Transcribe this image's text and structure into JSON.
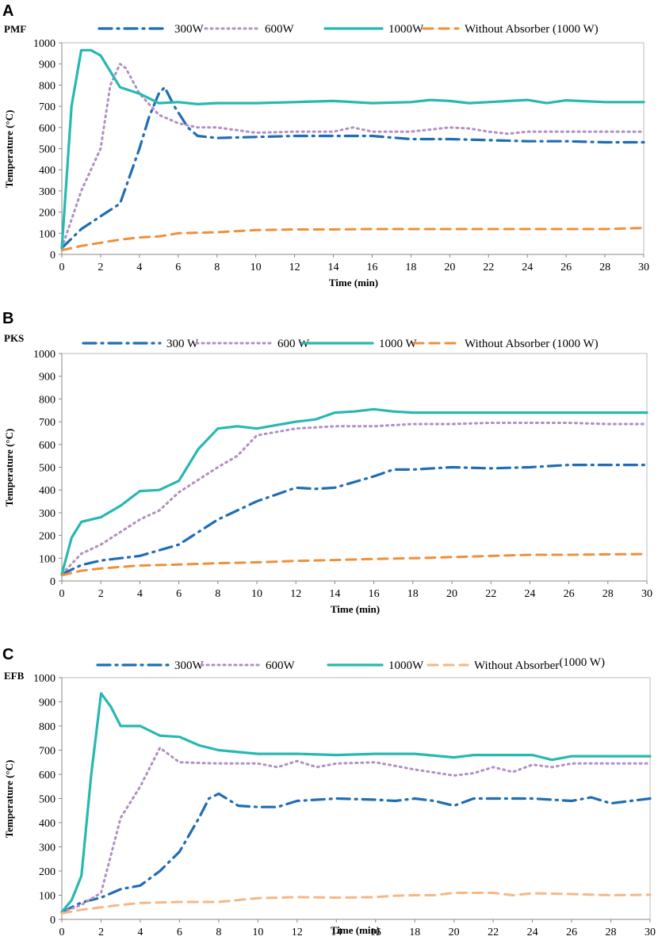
{
  "chart_data": [
    {
      "type": "line",
      "panel_letter": "A",
      "title": "PMF",
      "xlabel": "Time (min)",
      "ylabel": "Temperature (°C)",
      "xlim": [
        0,
        30
      ],
      "ylim": [
        0,
        1000
      ],
      "xticks": [
        "0",
        "2",
        "4",
        "6",
        "8",
        "10",
        "12",
        "14",
        "16",
        "18",
        "20",
        "22",
        "24",
        "26",
        "28",
        "30"
      ],
      "yticks": [
        "0",
        "100",
        "200",
        "300",
        "400",
        "500",
        "600",
        "700",
        "800",
        "900",
        "1000"
      ],
      "series": [
        {
          "name": "300W",
          "legend": [
            "300W"
          ],
          "color": "#1f6db5",
          "dash": "dashdot",
          "x": [
            0,
            1,
            2,
            3,
            4,
            4.5,
            5,
            5.3,
            5.8,
            6.5,
            7,
            8,
            10,
            12,
            14,
            16,
            18,
            20,
            22,
            24,
            26,
            28,
            30
          ],
          "y": [
            30,
            120,
            180,
            240,
            500,
            650,
            760,
            790,
            700,
            600,
            560,
            550,
            555,
            560,
            560,
            560,
            545,
            545,
            540,
            535,
            535,
            530,
            530
          ]
        },
        {
          "name": "600W",
          "legend": [
            "600W"
          ],
          "color": "#b18fc2",
          "dash": "dotted",
          "x": [
            0,
            1,
            2,
            2.5,
            3,
            3.3,
            4,
            5,
            6,
            7,
            8,
            10,
            12,
            14,
            15,
            16,
            18,
            20,
            21,
            22,
            23,
            24,
            26,
            28,
            30
          ],
          "y": [
            30,
            300,
            500,
            800,
            900,
            880,
            760,
            660,
            620,
            600,
            600,
            575,
            580,
            580,
            600,
            580,
            580,
            600,
            595,
            580,
            570,
            580,
            580,
            580,
            580
          ]
        },
        {
          "name": "1000W",
          "legend": [
            "1000W"
          ],
          "color": "#27b8b1",
          "dash": "solid",
          "x": [
            0,
            0.5,
            1,
            1.5,
            2,
            3,
            4,
            5,
            6,
            7,
            8,
            10,
            12,
            14,
            16,
            18,
            19,
            20,
            21,
            22,
            24,
            25,
            26,
            28,
            30
          ],
          "y": [
            30,
            700,
            965,
            965,
            940,
            790,
            760,
            715,
            720,
            710,
            715,
            715,
            720,
            725,
            715,
            720,
            730,
            725,
            715,
            720,
            730,
            715,
            728,
            720,
            720
          ]
        },
        {
          "name": "Without Absorber (1000 W)",
          "legend": [
            "Without Absorber (1000 W)"
          ],
          "color": "#ef8f3a",
          "dash": "dashed",
          "x": [
            0,
            1,
            2,
            3,
            4,
            5,
            6,
            8,
            10,
            12,
            14,
            16,
            18,
            20,
            22,
            24,
            26,
            28,
            30
          ],
          "y": [
            20,
            40,
            55,
            70,
            80,
            85,
            100,
            105,
            115,
            118,
            118,
            120,
            120,
            120,
            120,
            120,
            120,
            120,
            125
          ]
        }
      ]
    },
    {
      "type": "line",
      "panel_letter": "B",
      "title": "PKS",
      "xlabel": "Time (min)",
      "ylabel": "Temperature (°C)",
      "xlim": [
        0,
        30
      ],
      "ylim": [
        0,
        1000
      ],
      "xticks": [
        "0",
        "2",
        "4",
        "6",
        "8",
        "10",
        "12",
        "14",
        "16",
        "18",
        "20",
        "22",
        "24",
        "26",
        "28",
        "30"
      ],
      "yticks": [
        "0",
        "100",
        "200",
        "300",
        "400",
        "500",
        "600",
        "700",
        "800",
        "900",
        "1000"
      ],
      "series": [
        {
          "name": "300 W",
          "legend": [
            "300 W"
          ],
          "color": "#1f6db5",
          "dash": "dashdot",
          "x": [
            0,
            1,
            2,
            4,
            6,
            8,
            10,
            12,
            13,
            14,
            16,
            17,
            18,
            20,
            22,
            24,
            26,
            28,
            30
          ],
          "y": [
            30,
            70,
            90,
            110,
            160,
            270,
            350,
            410,
            405,
            410,
            460,
            490,
            490,
            500,
            495,
            500,
            510,
            510,
            510
          ]
        },
        {
          "name": "600 W",
          "legend": [
            "600 W"
          ],
          "color": "#b18fc2",
          "dash": "dotted",
          "x": [
            0,
            1,
            2,
            4,
            5,
            6,
            8,
            9,
            10,
            12,
            14,
            16,
            18,
            20,
            22,
            24,
            26,
            28,
            30
          ],
          "y": [
            30,
            120,
            160,
            270,
            310,
            390,
            500,
            550,
            640,
            670,
            680,
            680,
            690,
            690,
            695,
            695,
            695,
            690,
            690
          ]
        },
        {
          "name": "1000 W",
          "legend": [
            "1000 W"
          ],
          "color": "#27b8b1",
          "dash": "solid",
          "x": [
            0,
            0.5,
            1,
            2,
            3,
            4,
            5,
            6,
            7,
            8,
            9,
            10,
            12,
            13,
            14,
            15,
            16,
            17,
            18,
            20,
            22,
            24,
            26,
            28,
            30
          ],
          "y": [
            30,
            190,
            260,
            280,
            330,
            395,
            400,
            440,
            580,
            670,
            680,
            670,
            700,
            710,
            740,
            745,
            755,
            745,
            740,
            740,
            740,
            740,
            740,
            740,
            740
          ]
        },
        {
          "name": "Without Absorber (1000 W)",
          "legend": [
            "Without Absorber (1000 W)"
          ],
          "color": "#ef8f3a",
          "dash": "dashed",
          "x": [
            0,
            1,
            2,
            4,
            6,
            8,
            10,
            12,
            14,
            16,
            18,
            20,
            22,
            24,
            26,
            28,
            30
          ],
          "y": [
            25,
            45,
            55,
            68,
            72,
            78,
            82,
            88,
            92,
            97,
            100,
            105,
            110,
            115,
            115,
            117,
            118
          ]
        }
      ]
    },
    {
      "type": "line",
      "panel_letter": "C",
      "title": "EFB",
      "xlabel": "Time (min)",
      "ylabel": "Temperature (°C)",
      "xlim": [
        0,
        30
      ],
      "ylim": [
        0,
        1000
      ],
      "xticks": [
        "0",
        "2",
        "4",
        "6",
        "8",
        "10",
        "12",
        "14",
        "16",
        "18",
        "20",
        "22",
        "24",
        "26",
        "28",
        "30"
      ],
      "yticks": [
        "0",
        "100",
        "200",
        "300",
        "400",
        "500",
        "600",
        "700",
        "800",
        "900",
        "1000"
      ],
      "series": [
        {
          "name": "300W",
          "legend": [
            "300W"
          ],
          "color": "#1f6db5",
          "dash": "dashdot",
          "x": [
            0,
            1,
            2,
            3,
            4,
            5,
            6,
            7,
            7.5,
            8,
            9,
            10,
            11,
            12,
            14,
            16,
            17,
            18,
            19,
            20,
            21,
            22,
            24,
            25,
            26,
            27,
            28,
            30
          ],
          "y": [
            30,
            70,
            90,
            125,
            140,
            200,
            280,
            420,
            500,
            520,
            470,
            465,
            465,
            490,
            500,
            495,
            490,
            500,
            490,
            470,
            500,
            500,
            500,
            495,
            490,
            505,
            480,
            500
          ]
        },
        {
          "name": "600W",
          "legend": [
            "600W"
          ],
          "color": "#b18fc2",
          "dash": "dotted",
          "x": [
            0,
            1,
            2,
            3,
            4,
            5,
            6,
            8,
            10,
            11,
            12,
            13,
            14,
            16,
            18,
            20,
            21,
            22,
            23,
            24,
            25,
            26,
            28,
            30
          ],
          "y": [
            30,
            60,
            110,
            420,
            550,
            710,
            650,
            645,
            645,
            630,
            655,
            630,
            645,
            650,
            620,
            595,
            605,
            630,
            610,
            640,
            630,
            645,
            645,
            645
          ]
        },
        {
          "name": "1000W",
          "legend": [
            "1000W"
          ],
          "color": "#27b8b1",
          "dash": "solid",
          "x": [
            0,
            0.5,
            1,
            1.5,
            2,
            2.5,
            3,
            4,
            5,
            6,
            7,
            8,
            10,
            12,
            14,
            16,
            17,
            18,
            20,
            21,
            22,
            24,
            25,
            26,
            28,
            30
          ],
          "y": [
            30,
            80,
            180,
            600,
            935,
            880,
            800,
            800,
            760,
            755,
            720,
            700,
            685,
            685,
            680,
            685,
            685,
            685,
            670,
            680,
            680,
            680,
            660,
            675,
            675,
            675
          ]
        },
        {
          "name": "Without Absorber(1000 W)",
          "legend": [
            "Without Absorber",
            "(1000 W)"
          ],
          "color": "#f6b784",
          "dash": "dashed",
          "x": [
            0,
            1,
            2,
            3,
            4,
            6,
            8,
            10,
            12,
            14,
            16,
            17,
            18,
            19,
            20,
            22,
            23,
            24,
            26,
            28,
            30
          ],
          "y": [
            25,
            40,
            50,
            60,
            68,
            72,
            72,
            88,
            92,
            90,
            92,
            98,
            100,
            100,
            110,
            110,
            100,
            108,
            105,
            100,
            102
          ]
        }
      ]
    }
  ]
}
